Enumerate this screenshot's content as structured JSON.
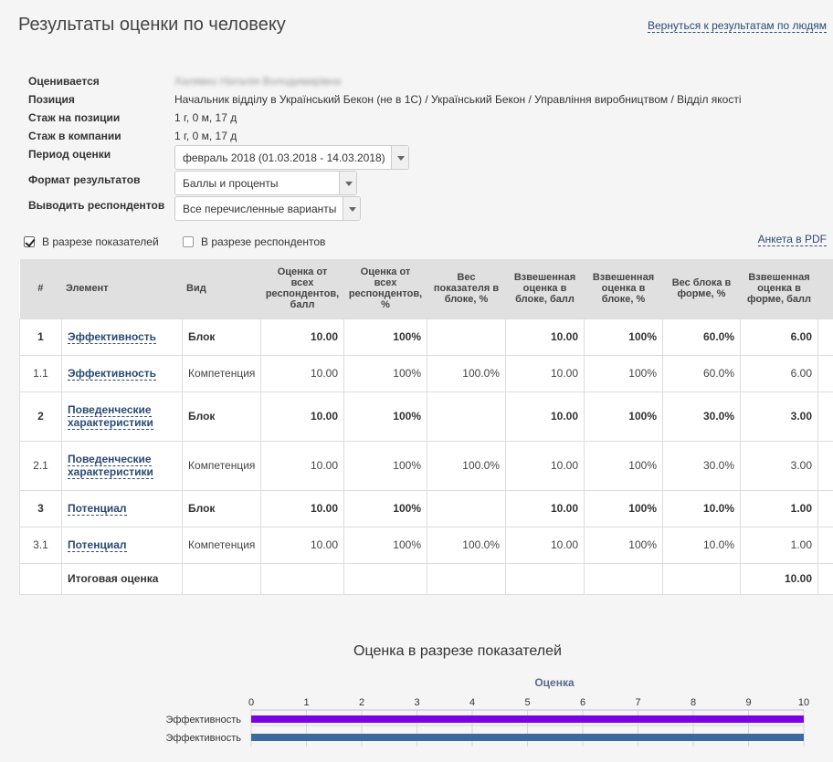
{
  "header": {
    "title": "Результаты оценки по человеку",
    "back_link": "Вернуться к результатам по людям"
  },
  "info": {
    "evaluated_label": "Оценивается",
    "evaluated_value": "Халявко Наталія Володимирівна",
    "position_label": "Позиция",
    "position_value": "Начальник відділу в Український Бекон (не в 1С) / Український Бекон / Управління виробництвом / Відділ якості",
    "tenure_position_label": "Стаж на позиции",
    "tenure_position_value": "1 г, 0 м, 17 д",
    "tenure_company_label": "Стаж в компании",
    "tenure_company_value": "1 г, 0 м, 17 д",
    "period_label": "Период оценки",
    "period_value": "февраль 2018 (01.03.2018 - 14.03.2018)",
    "format_label": "Формат результатов",
    "format_value": "Баллы и проценты",
    "respondents_label": "Выводить респондентов",
    "respondents_value": "Все перечисленные варианты"
  },
  "options": {
    "by_indicators_label": "В разрезе показателей",
    "by_indicators_checked": true,
    "by_respondents_label": "В разрезе респондентов",
    "by_respondents_checked": false,
    "pdf_link": "Анкета в PDF"
  },
  "table": {
    "headers": {
      "num": "#",
      "element": "Элемент",
      "kind": "Вид",
      "score_all": "Оценка от всех респондентов, балл",
      "score_all_pct": "Оценка от всех респондентов, %",
      "weight_in_block": "Вес показателя в блоке, %",
      "weighted_block_score": "Взвешенная оценка в блоке, балл",
      "weighted_block_pct": "Взвешенная оценка в блоке, %",
      "block_weight_form": "Вес блока в форме, %",
      "weighted_form_score": "Взвешенная оценка в форме, балл"
    },
    "rows": [
      {
        "num": "1",
        "element": "Эффективность",
        "kind": "Блок",
        "score": "10.00",
        "pct": "100%",
        "weight": "",
        "wscore": "10.00",
        "wpct": "100%",
        "bweight": "60.0%",
        "fscore": "6.00",
        "bold": true
      },
      {
        "num": "1.1",
        "element": "Эффективность",
        "kind": "Компетенция",
        "score": "10.00",
        "pct": "100%",
        "weight": "100.0%",
        "wscore": "10.00",
        "wpct": "100%",
        "bweight": "60.0%",
        "fscore": "6.00",
        "bold": false
      },
      {
        "num": "2",
        "element": "Поведенческие характеристики",
        "kind": "Блок",
        "score": "10.00",
        "pct": "100%",
        "weight": "",
        "wscore": "10.00",
        "wpct": "100%",
        "bweight": "30.0%",
        "fscore": "3.00",
        "bold": true
      },
      {
        "num": "2.1",
        "element": "Поведенческие характеристики",
        "kind": "Компетенция",
        "score": "10.00",
        "pct": "100%",
        "weight": "100.0%",
        "wscore": "10.00",
        "wpct": "100%",
        "bweight": "30.0%",
        "fscore": "3.00",
        "bold": false
      },
      {
        "num": "3",
        "element": "Потенциал",
        "kind": "Блок",
        "score": "10.00",
        "pct": "100%",
        "weight": "",
        "wscore": "10.00",
        "wpct": "100%",
        "bweight": "10.0%",
        "fscore": "1.00",
        "bold": true
      },
      {
        "num": "3.1",
        "element": "Потенциал",
        "kind": "Компетенция",
        "score": "10.00",
        "pct": "100%",
        "weight": "100.0%",
        "wscore": "10.00",
        "wpct": "100%",
        "bweight": "10.0%",
        "fscore": "1.00",
        "bold": false
      }
    ],
    "total_label": "Итоговая оценка",
    "total_value": "10.00"
  },
  "chart_title": "Оценка в разрезе показателей",
  "chart_data": {
    "type": "bar",
    "orientation": "horizontal",
    "title": "Оценка",
    "xlim": [
      0,
      10
    ],
    "xticks": [
      "0",
      "1",
      "2",
      "3",
      "4",
      "5",
      "6",
      "7",
      "8",
      "9",
      "10"
    ],
    "categories": [
      "Эффективность",
      "Эффективность"
    ],
    "values": [
      10,
      10
    ],
    "colors": [
      "#7a00e6",
      "#3a6aa0"
    ],
    "grid": true
  }
}
